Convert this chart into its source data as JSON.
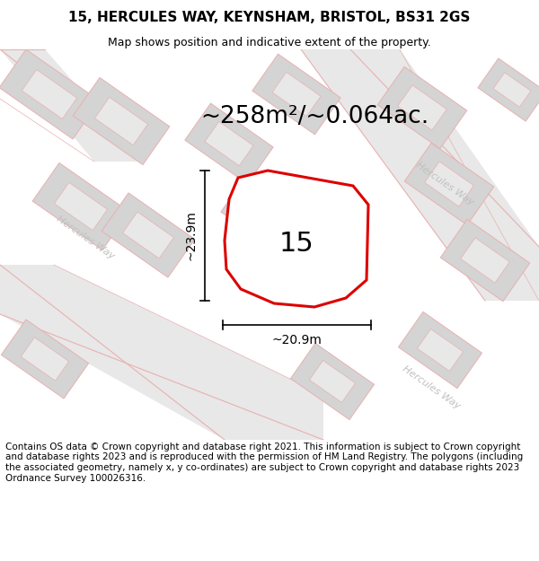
{
  "title": "15, HERCULES WAY, KEYNSHAM, BRISTOL, BS31 2GS",
  "subtitle": "Map shows position and indicative extent of the property.",
  "area_text": "~258m²/~0.064ac.",
  "dim_width": "~20.9m",
  "dim_height": "~23.9m",
  "plot_number": "15",
  "footer": "Contains OS data © Crown copyright and database right 2021. This information is subject to Crown copyright and database rights 2023 and is reproduced with the permission of HM Land Registry. The polygons (including the associated geometry, namely x, y co-ordinates) are subject to Crown copyright and database rights 2023 Ordnance Survey 100026316.",
  "bg_color": "#ffffff",
  "map_bg": "#f2f2f2",
  "road_fill": "#e8e8e8",
  "road_stroke": "#e8b0b0",
  "building_fill": "#d4d4d4",
  "building_inner": "#e8e8e8",
  "plot_stroke": "#dd0000",
  "road_label_color": "#c0c0c0",
  "title_fontsize": 11,
  "subtitle_fontsize": 9,
  "area_fontsize": 19,
  "plot_num_fontsize": 22,
  "dim_fontsize": 10,
  "footer_fontsize": 7.5
}
